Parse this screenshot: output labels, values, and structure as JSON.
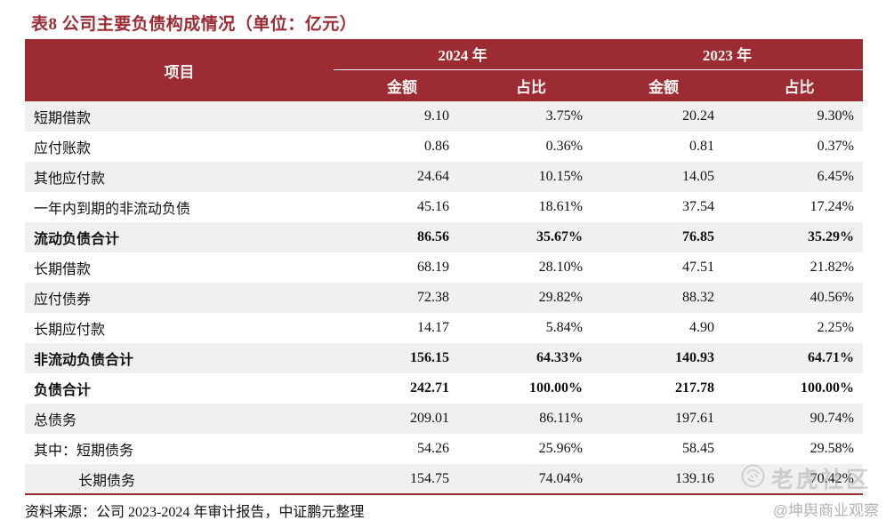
{
  "title": "表8 公司主要负债构成情况（单位：亿元）",
  "table": {
    "item_header": "项目",
    "year_2024": "2024 年",
    "year_2023": "2023 年",
    "sub_headers": [
      "金额",
      "占比",
      "金额",
      "占比"
    ],
    "rows": [
      {
        "item": "短期借款",
        "values": [
          "9.10",
          "3.75%",
          "20.24",
          "9.30%"
        ],
        "bold": false,
        "indent": false
      },
      {
        "item": "应付账款",
        "values": [
          "0.86",
          "0.36%",
          "0.81",
          "0.37%"
        ],
        "bold": false,
        "indent": false
      },
      {
        "item": "其他应付款",
        "values": [
          "24.64",
          "10.15%",
          "14.05",
          "6.45%"
        ],
        "bold": false,
        "indent": false
      },
      {
        "item": "一年内到期的非流动负债",
        "values": [
          "45.16",
          "18.61%",
          "37.54",
          "17.24%"
        ],
        "bold": false,
        "indent": false
      },
      {
        "item": "流动负债合计",
        "values": [
          "86.56",
          "35.67%",
          "76.85",
          "35.29%"
        ],
        "bold": true,
        "indent": false
      },
      {
        "item": "长期借款",
        "values": [
          "68.19",
          "28.10%",
          "47.51",
          "21.82%"
        ],
        "bold": false,
        "indent": false
      },
      {
        "item": "应付债券",
        "values": [
          "72.38",
          "29.82%",
          "88.32",
          "40.56%"
        ],
        "bold": false,
        "indent": false
      },
      {
        "item": "长期应付款",
        "values": [
          "14.17",
          "5.84%",
          "4.90",
          "2.25%"
        ],
        "bold": false,
        "indent": false
      },
      {
        "item": "非流动负债合计",
        "values": [
          "156.15",
          "64.33%",
          "140.93",
          "64.71%"
        ],
        "bold": true,
        "indent": false
      },
      {
        "item": "负债合计",
        "values": [
          "242.71",
          "100.00%",
          "217.78",
          "100.00%"
        ],
        "bold": true,
        "indent": false
      },
      {
        "item": "总债务",
        "values": [
          "209.01",
          "86.11%",
          "197.61",
          "90.74%"
        ],
        "bold": false,
        "indent": false
      },
      {
        "item": "其中：短期债务",
        "values": [
          "54.26",
          "25.96%",
          "58.45",
          "29.58%"
        ],
        "bold": false,
        "indent": false
      },
      {
        "item": "长期债务",
        "values": [
          "154.75",
          "74.04%",
          "139.16",
          "70.42%"
        ],
        "bold": false,
        "indent": true
      }
    ]
  },
  "source": "资料来源：公司 2023-2024 年审计报告，中证鹏元整理",
  "watermark": {
    "brand": "老虎社区",
    "handle": "@坤舆商业观察"
  },
  "colors": {
    "accent_red": "#9c2b33",
    "row_alt_gray": "#f2efef",
    "text_black": "#111111",
    "watermark_gray": "#b3b3b3"
  }
}
